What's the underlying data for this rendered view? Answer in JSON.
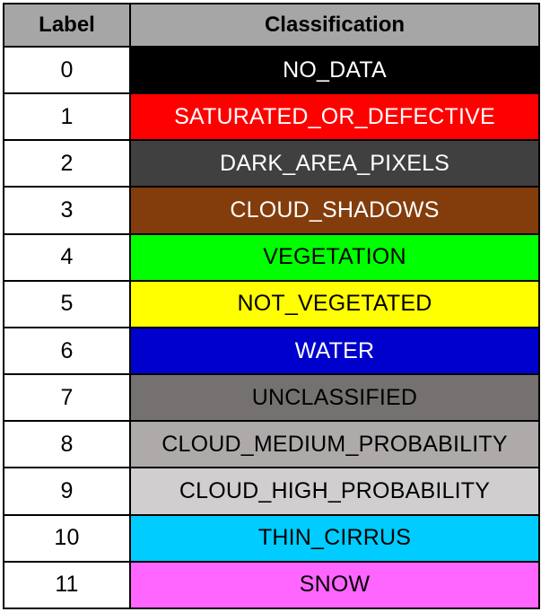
{
  "header": {
    "label": "Label",
    "classification": "Classification"
  },
  "rows": [
    {
      "label": "0",
      "classification": "NO_DATA",
      "bg": "#000000",
      "fg": "#ffffff"
    },
    {
      "label": "1",
      "classification": "SATURATED_OR_DEFECTIVE",
      "bg": "#ff0000",
      "fg": "#ffffff"
    },
    {
      "label": "2",
      "classification": "DARK_AREA_PIXELS",
      "bg": "#404040",
      "fg": "#ffffff"
    },
    {
      "label": "3",
      "classification": "CLOUD_SHADOWS",
      "bg": "#833c0b",
      "fg": "#ffffff"
    },
    {
      "label": "4",
      "classification": "VEGETATION",
      "bg": "#00ff00",
      "fg": "#000000"
    },
    {
      "label": "5",
      "classification": "NOT_VEGETATED",
      "bg": "#ffff00",
      "fg": "#000000"
    },
    {
      "label": "6",
      "classification": "WATER",
      "bg": "#0000cc",
      "fg": "#ffffff"
    },
    {
      "label": "7",
      "classification": "UNCLASSIFIED",
      "bg": "#757171",
      "fg": "#000000"
    },
    {
      "label": "8",
      "classification": "CLOUD_MEDIUM_PROBABILITY",
      "bg": "#aeaaaa",
      "fg": "#000000"
    },
    {
      "label": "9",
      "classification": "CLOUD_HIGH_PROBABILITY",
      "bg": "#d0cece",
      "fg": "#000000"
    },
    {
      "label": "10",
      "classification": "THIN_CIRRUS",
      "bg": "#00ccff",
      "fg": "#000000"
    },
    {
      "label": "11",
      "classification": "SNOW",
      "bg": "#ff66ff",
      "fg": "#000000"
    }
  ]
}
